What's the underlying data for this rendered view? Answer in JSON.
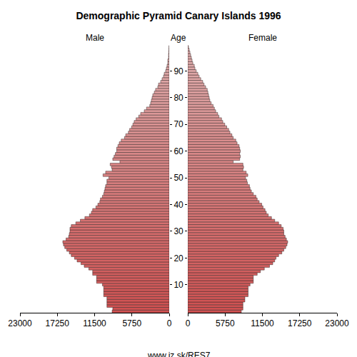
{
  "chart_data": {
    "type": "bar",
    "orientation": "horizontal",
    "title": "Demographic Pyramid Canary Islands 1996",
    "y_label": "Age",
    "source": "www.iz.sk/RES7",
    "categories": [
      0,
      1,
      2,
      3,
      4,
      5,
      6,
      7,
      8,
      9,
      10,
      11,
      12,
      13,
      14,
      15,
      16,
      17,
      18,
      19,
      20,
      21,
      22,
      23,
      24,
      25,
      26,
      27,
      28,
      29,
      30,
      31,
      32,
      33,
      34,
      35,
      36,
      37,
      38,
      39,
      40,
      41,
      42,
      43,
      44,
      45,
      46,
      47,
      48,
      49,
      50,
      51,
      52,
      53,
      54,
      55,
      56,
      57,
      58,
      59,
      60,
      61,
      62,
      63,
      64,
      65,
      66,
      67,
      68,
      69,
      70,
      71,
      72,
      73,
      74,
      75,
      76,
      77,
      78,
      79,
      80,
      81,
      82,
      83,
      84,
      85,
      86,
      87,
      88,
      89,
      90,
      91,
      92,
      93,
      94,
      95,
      96,
      97,
      98,
      99
    ],
    "series": [
      {
        "name": "Male",
        "color": "#d05050",
        "values": [
          8800,
          8700,
          9600,
          9600,
          9600,
          9600,
          10100,
          10100,
          10100,
          10100,
          10300,
          11200,
          11200,
          11200,
          11800,
          11800,
          12400,
          13100,
          13600,
          14200,
          14600,
          15100,
          15400,
          15800,
          16100,
          16300,
          16400,
          15900,
          15500,
          15400,
          15300,
          15300,
          15100,
          14400,
          13700,
          13000,
          12300,
          12000,
          11800,
          11300,
          11000,
          10700,
          10600,
          10300,
          10100,
          10000,
          9900,
          9800,
          9600,
          9600,
          9300,
          10200,
          9800,
          8800,
          8900,
          9100,
          7600,
          8700,
          8500,
          8300,
          8100,
          8100,
          7900,
          7700,
          7400,
          6900,
          6700,
          6300,
          6100,
          5800,
          5600,
          5400,
          5100,
          4700,
          4400,
          3850,
          3500,
          3000,
          2860,
          2750,
          2640,
          2530,
          2300,
          2100,
          1760,
          1650,
          1320,
          1100,
          880,
          770,
          550,
          440,
          330,
          220,
          220,
          110,
          110,
          80,
          50,
          30
        ]
      },
      {
        "name": "Female",
        "color": "#d05050",
        "values": [
          8250,
          8500,
          8500,
          8500,
          8800,
          8800,
          9300,
          9300,
          9300,
          9300,
          9600,
          10100,
          10100,
          10100,
          10700,
          11200,
          11800,
          12600,
          13100,
          13400,
          13600,
          14000,
          14500,
          14800,
          15100,
          15300,
          15400,
          15200,
          15000,
          14800,
          14800,
          14700,
          14400,
          14000,
          13400,
          12900,
          12400,
          12100,
          11900,
          11600,
          11400,
          11000,
          10700,
          10500,
          10100,
          9800,
          9600,
          9500,
          9200,
          9100,
          8900,
          9250,
          9000,
          8500,
          8600,
          8500,
          7000,
          8000,
          8100,
          8000,
          8100,
          8000,
          7900,
          7600,
          7400,
          7000,
          6800,
          6500,
          6300,
          6000,
          5700,
          5400,
          5200,
          4800,
          4600,
          4300,
          4100,
          3900,
          3600,
          3400,
          3300,
          3200,
          3100,
          3000,
          2750,
          2500,
          2300,
          2000,
          1750,
          1550,
          1300,
          1100,
          1000,
          770,
          660,
          550,
          440,
          330,
          220,
          110
        ]
      }
    ],
    "xlim": [
      0,
      23000
    ],
    "xticks": [
      0,
      5750,
      11500,
      17250,
      23000
    ],
    "ylim": [
      -0.5,
      100
    ],
    "yticks": [
      10,
      20,
      30,
      40,
      50,
      60,
      70,
      80,
      90
    ],
    "grid": false
  }
}
